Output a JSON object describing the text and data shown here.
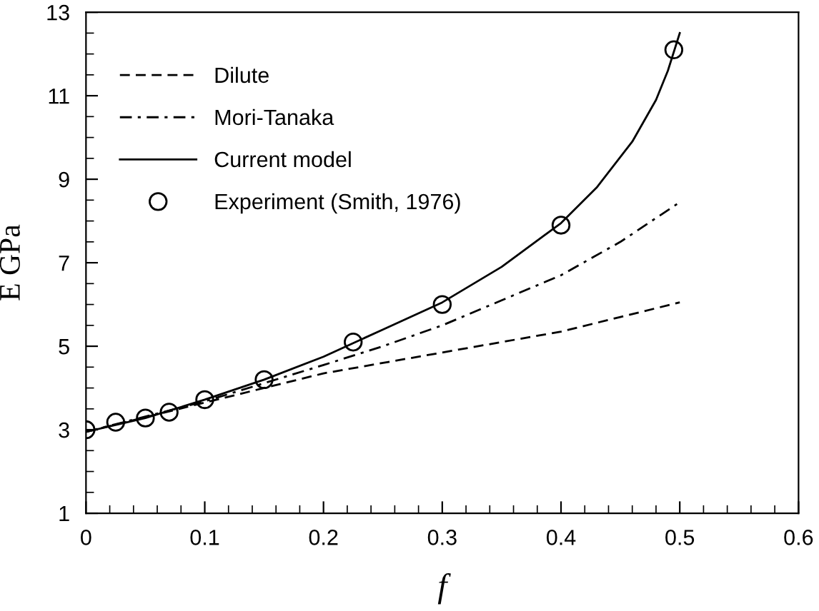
{
  "chart_data": {
    "type": "line",
    "xlabel": "f",
    "ylabel": "E GPa",
    "xlim": [
      0,
      0.6
    ],
    "xticks": [
      0,
      0.1,
      0.2,
      0.3,
      0.4,
      0.5,
      0.6
    ],
    "ylim": [
      1,
      13
    ],
    "yticks": [
      1,
      3,
      5,
      7,
      9,
      11,
      13
    ],
    "grid": false,
    "legend": "top left",
    "series": [
      {
        "name": "Dilute",
        "color": "#000000",
        "line_style": "dashed",
        "x": [
          0,
          0.1,
          0.2,
          0.3,
          0.4,
          0.45,
          0.5
        ],
        "values": [
          2.95,
          3.65,
          4.35,
          4.85,
          5.35,
          5.7,
          6.05
        ]
      },
      {
        "name": "Mori-Tanaka",
        "color": "#000000",
        "line_style": "dashdot",
        "x": [
          0,
          0.1,
          0.2,
          0.25,
          0.3,
          0.35,
          0.4,
          0.45,
          0.5
        ],
        "values": [
          2.95,
          3.68,
          4.55,
          5.0,
          5.5,
          6.1,
          6.7,
          7.5,
          8.45
        ]
      },
      {
        "name": "Current model",
        "color": "#000000",
        "line_style": "solid",
        "x": [
          0,
          0.05,
          0.1,
          0.15,
          0.2,
          0.25,
          0.3,
          0.35,
          0.4,
          0.43,
          0.46,
          0.48,
          0.49,
          0.5
        ],
        "values": [
          2.95,
          3.28,
          3.72,
          4.2,
          4.75,
          5.4,
          6.05,
          6.9,
          7.95,
          8.8,
          9.9,
          10.9,
          11.6,
          12.5
        ]
      },
      {
        "name": "Experiment (Smith, 1976)",
        "color": "#000000",
        "type": "scatter",
        "marker": "circle",
        "x": [
          0,
          0.025,
          0.05,
          0.07,
          0.1,
          0.15,
          0.225,
          0.3,
          0.4,
          0.495
        ],
        "values": [
          3.0,
          3.18,
          3.28,
          3.42,
          3.72,
          4.2,
          5.1,
          6.0,
          7.9,
          12.1
        ]
      }
    ]
  }
}
